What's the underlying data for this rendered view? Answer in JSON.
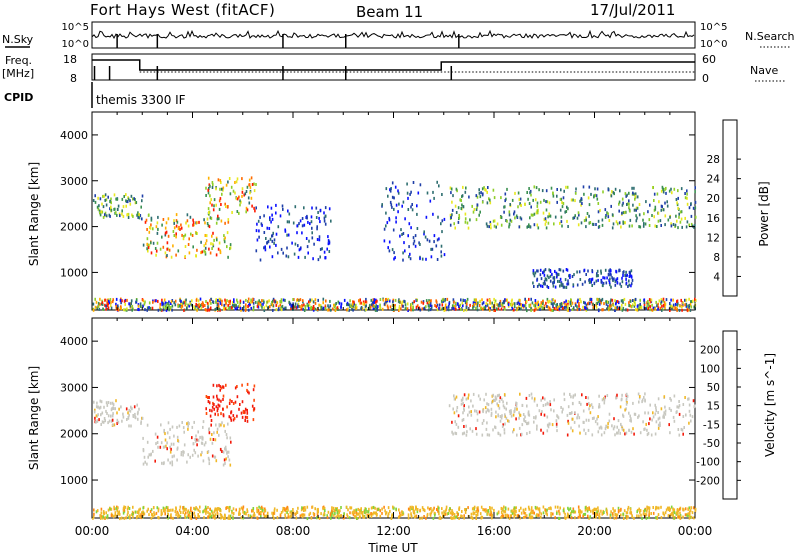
{
  "header": {
    "station": "Fort Hays West (fitACF)",
    "beam": "Beam 11",
    "date": "17/Jul/2011"
  },
  "status_panel": {
    "nsky_label": "N.Sky",
    "nsky_ticks": [
      "10^5",
      "10^0"
    ],
    "nsearch_label": "N.Search",
    "nsearch_ticks": [
      "10^5",
      "10^0"
    ],
    "freq_label": "Freq.",
    "freq_unit": "[MHz]",
    "freq_ticks": [
      "18",
      "8"
    ],
    "nave_label": "Nave",
    "nave_ticks": [
      "60",
      "0"
    ],
    "cpid_label": "CPID",
    "cpid_value": "themis 3300 IF"
  },
  "chart_data": [
    {
      "type": "heatmap",
      "name": "power",
      "ylabel": "Slant Range [km]",
      "ylim": [
        180,
        4500
      ],
      "yticks": [
        "1000",
        "2000",
        "3000",
        "4000"
      ],
      "xticks": [
        "00:00",
        "04:00",
        "08:00",
        "12:00",
        "16:00",
        "20:00",
        "00:00"
      ],
      "colorbar": {
        "label": "Power [dB]",
        "ticks": [
          "4",
          "8",
          "12",
          "16",
          "20",
          "24",
          "28"
        ],
        "colors": [
          "#0a10ff",
          "#1f3fa8",
          "#2e6e70",
          "#3a9050",
          "#8fce2a",
          "#e8e820",
          "#ffb000",
          "#ff6a00",
          "#ff1a00"
        ]
      },
      "features": [
        {
          "from_ut": 0.0,
          "to_ut": 2.0,
          "range_km": [
            2200,
            2750
          ],
          "level": "medium"
        },
        {
          "from_ut": 2.0,
          "to_ut": 5.5,
          "range_km": [
            1350,
            2300
          ],
          "level": "high"
        },
        {
          "from_ut": 4.5,
          "to_ut": 6.5,
          "range_km": [
            2300,
            3100
          ],
          "level": "high"
        },
        {
          "from_ut": 6.5,
          "to_ut": 9.5,
          "range_km": [
            1300,
            2500
          ],
          "level": "low"
        },
        {
          "from_ut": 11.5,
          "to_ut": 14.0,
          "range_km": [
            1300,
            3000
          ],
          "level": "low"
        },
        {
          "from_ut": 14.2,
          "to_ut": 24.0,
          "range_km": [
            2000,
            2900
          ],
          "level": "medium"
        },
        {
          "from_ut": 17.5,
          "to_ut": 21.5,
          "range_km": [
            700,
            1100
          ],
          "level": "low"
        },
        {
          "from_ut": 0.0,
          "to_ut": 24.0,
          "range_km": [
            200,
            450
          ],
          "level": "ground"
        }
      ]
    },
    {
      "type": "heatmap",
      "name": "velocity",
      "ylabel": "Slant Range [km]",
      "ylim": [
        180,
        4500
      ],
      "yticks": [
        "1000",
        "2000",
        "3000",
        "4000"
      ],
      "xticks": [
        "00:00",
        "04:00",
        "08:00",
        "12:00",
        "16:00",
        "20:00",
        "00:00"
      ],
      "xlabel": "Time UT",
      "colorbar": {
        "label": "Velocity [m s^-1]",
        "ticks": [
          "200",
          "100",
          "50",
          "15",
          "-15",
          "-50",
          "-100",
          "-200"
        ],
        "colors": [
          "#1428c8",
          "#3a6ec0",
          "#3e9a48",
          "#7ed43a",
          "#c8c8c0",
          "#f0b828",
          "#ff8a14",
          "#ff4a0a",
          "#f21a0a"
        ]
      },
      "features": [
        {
          "from_ut": 0.0,
          "to_ut": 2.0,
          "range_km": [
            2200,
            2750
          ],
          "velocity": "near zero"
        },
        {
          "from_ut": 2.0,
          "to_ut": 5.5,
          "range_km": [
            1350,
            2300
          ],
          "velocity": "near zero"
        },
        {
          "from_ut": 4.5,
          "to_ut": 6.5,
          "range_km": [
            2300,
            3100
          ],
          "velocity": "-200"
        },
        {
          "from_ut": 14.2,
          "to_ut": 24.0,
          "range_km": [
            2000,
            2900
          ],
          "velocity": "near zero"
        },
        {
          "from_ut": 0.0,
          "to_ut": 24.0,
          "range_km": [
            200,
            450
          ],
          "velocity": "-50"
        }
      ]
    }
  ]
}
